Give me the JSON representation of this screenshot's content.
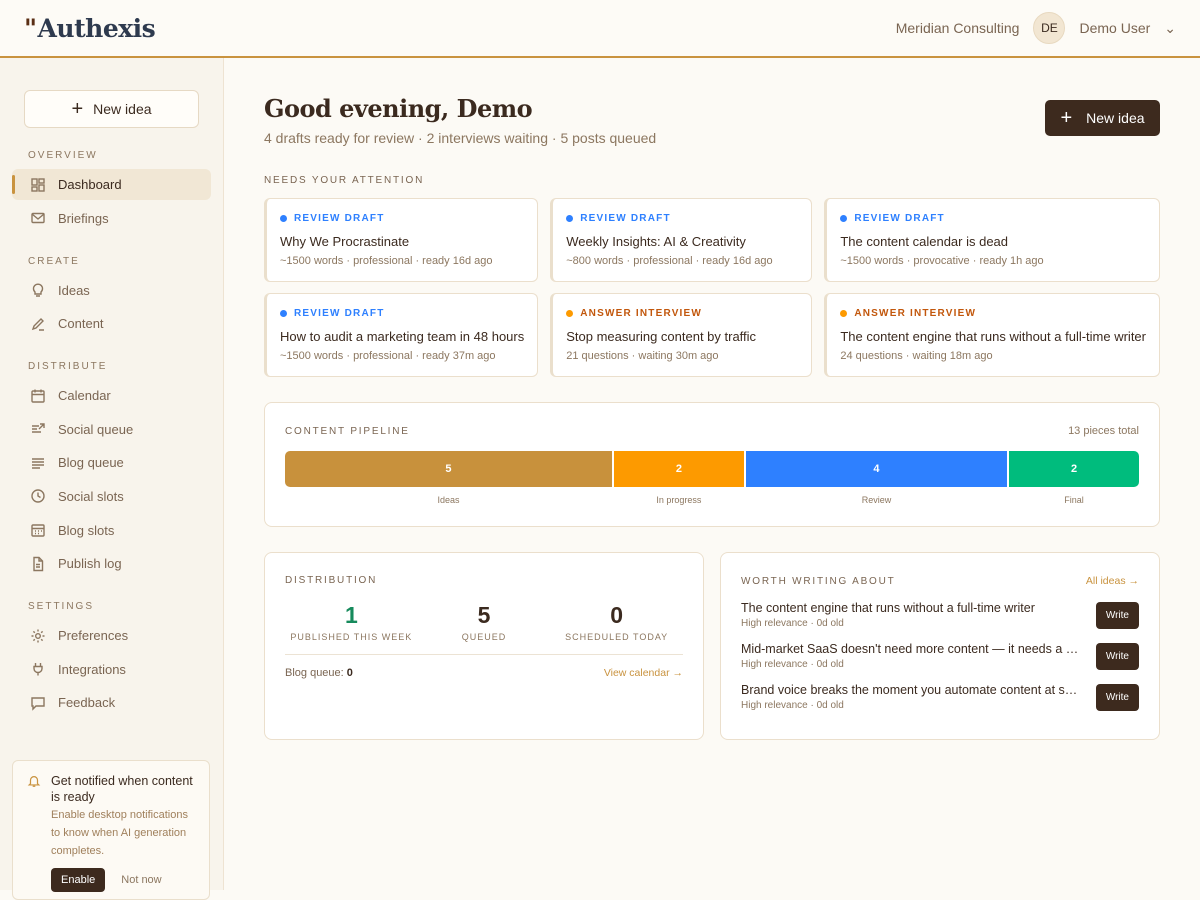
{
  "header": {
    "logo": "Authexis",
    "org": "Meridian Consulting",
    "avatar": "DE",
    "user": "Demo User"
  },
  "sidebar": {
    "new_idea": "New idea",
    "sections": [
      {
        "title": "OVERVIEW",
        "items": [
          {
            "label": "Dashboard",
            "icon": "dashboard-icon",
            "active": true
          },
          {
            "label": "Briefings",
            "icon": "mail-icon"
          }
        ]
      },
      {
        "title": "CREATE",
        "items": [
          {
            "label": "Ideas",
            "icon": "lightbulb-icon"
          },
          {
            "label": "Content",
            "icon": "pencil-icon"
          }
        ]
      },
      {
        "title": "DISTRIBUTE",
        "items": [
          {
            "label": "Calendar",
            "icon": "calendar-icon"
          },
          {
            "label": "Social queue",
            "icon": "share-icon"
          },
          {
            "label": "Blog queue",
            "icon": "list-icon"
          },
          {
            "label": "Social slots",
            "icon": "clock-icon"
          },
          {
            "label": "Blog slots",
            "icon": "calendar-grid-icon"
          },
          {
            "label": "Publish log",
            "icon": "file-icon"
          }
        ]
      },
      {
        "title": "SETTINGS",
        "items": [
          {
            "label": "Preferences",
            "icon": "gear-icon"
          },
          {
            "label": "Integrations",
            "icon": "plug-icon"
          },
          {
            "label": "Feedback",
            "icon": "chat-icon"
          }
        ]
      }
    ],
    "notification": {
      "title": "Get notified when content is ready",
      "desc": "Enable desktop notifications to know when AI generation completes.",
      "enable": "Enable",
      "dismiss": "Not now"
    }
  },
  "main": {
    "greeting": "Good evening, Demo",
    "summary": "4 drafts ready for review · 2 interviews waiting · 5 posts queued",
    "new_idea": "New idea",
    "attention_label": "NEEDS YOUR ATTENTION",
    "cards": [
      {
        "tag": "REVIEW DRAFT",
        "kind": "review",
        "title": "Why We Procrastinate",
        "meta": "~1500 words · professional · ready 16d ago"
      },
      {
        "tag": "REVIEW DRAFT",
        "kind": "review",
        "title": "Weekly Insights: AI & Creativity",
        "meta": "~800 words · professional · ready 16d ago"
      },
      {
        "tag": "REVIEW DRAFT",
        "kind": "review",
        "title": "The content calendar is dead",
        "meta": "~1500 words · provocative · ready 1h ago"
      },
      {
        "tag": "REVIEW DRAFT",
        "kind": "review",
        "title": "How to audit a marketing team in 48 hours",
        "meta": "~1500 words · professional · ready 37m ago"
      },
      {
        "tag": "ANSWER INTERVIEW",
        "kind": "interview",
        "title": "Stop measuring content by traffic",
        "meta": "21 questions · waiting 30m ago"
      },
      {
        "tag": "ANSWER INTERVIEW",
        "kind": "interview",
        "title": "The content engine that runs without a full-time writer",
        "meta": "24 questions · waiting 18m ago"
      }
    ],
    "pipeline": {
      "label": "CONTENT PIPELINE",
      "total": "13 pieces total",
      "stages": [
        {
          "name": "Ideas",
          "value": 5,
          "color": "#c8913c"
        },
        {
          "name": "In progress",
          "value": 2,
          "color": "#fd9a00"
        },
        {
          "name": "Review",
          "value": 4,
          "color": "#2e80ff"
        },
        {
          "name": "Final",
          "value": 2,
          "color": "#00bc7d"
        }
      ]
    },
    "distribution": {
      "label": "DISTRIBUTION",
      "stats": [
        {
          "value": "1",
          "label": "PUBLISHED THIS WEEK",
          "color": "#168a5c"
        },
        {
          "value": "5",
          "label": "QUEUED",
          "color": "#3b2a1f"
        },
        {
          "value": "0",
          "label": "SCHEDULED TODAY",
          "color": "#3b2a1f"
        }
      ],
      "blog_queue_label": "Blog queue:",
      "blog_queue_value": "0",
      "link": "View calendar →"
    },
    "worth": {
      "label": "WORTH WRITING ABOUT",
      "link": "All ideas →",
      "write": "Write",
      "items": [
        {
          "title": "The content engine that runs without a full-time writer",
          "meta": "High relevance · 0d old"
        },
        {
          "title": "Mid-market SaaS doesn't need more content — it needs a system",
          "meta": "High relevance · 0d old"
        },
        {
          "title": "Brand voice breaks the moment you automate content at scale",
          "meta": "High relevance · 0d old"
        }
      ]
    }
  },
  "colors": {
    "accent": "#c9933f",
    "dark": "#3d2a1e",
    "review": "#2e80ff",
    "interview": "#fd9a00",
    "interview_text": "#c2570c"
  }
}
